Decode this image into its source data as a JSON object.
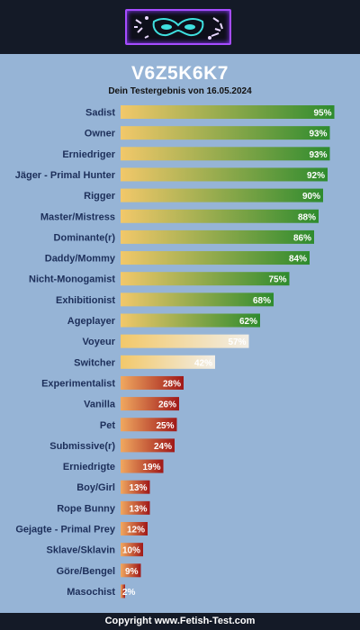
{
  "header": {
    "logo_icon": "masquerade-mask-logo"
  },
  "footer": {
    "copyright": "Copyright www.Fetish-Test.com"
  },
  "colors": {
    "page_background": "#96b4d6",
    "header_background": "#141a27",
    "high_start": "#f2c86a",
    "high_end": "#2e8b2e",
    "mid_start": "#f2c86a",
    "mid_end": "#f2eee6",
    "low_start": "#f0a860",
    "low_end": "#a01818",
    "label_color": "#1d2f5a"
  },
  "chart_data": {
    "type": "bar",
    "orientation": "horizontal",
    "title": "V6Z5K6K7",
    "subtitle": "Dein Testergebnis von 16.05.2024",
    "xlim": [
      0,
      100
    ],
    "unit": "%",
    "grid": false,
    "categories": [
      "Sadist",
      "Owner",
      "Erniedriger",
      "Jäger - Primal Hunter",
      "Rigger",
      "Master/Mistress",
      "Dominante(r)",
      "Daddy/Mommy",
      "Nicht-Monogamist",
      "Exhibitionist",
      "Ageplayer",
      "Voyeur",
      "Switcher",
      "Experimentalist",
      "Vanilla",
      "Pet",
      "Submissive(r)",
      "Erniedrigte",
      "Boy/Girl",
      "Rope Bunny",
      "Gejagte - Primal Prey",
      "Sklave/Sklavin",
      "Göre/Bengel",
      "Masochist"
    ],
    "values": [
      95,
      93,
      93,
      92,
      90,
      88,
      86,
      84,
      75,
      68,
      62,
      57,
      42,
      28,
      26,
      25,
      24,
      19,
      13,
      13,
      12,
      10,
      9,
      2
    ],
    "value_labels": [
      "95%",
      "93%",
      "93%",
      "92%",
      "90%",
      "88%",
      "86%",
      "84%",
      "75%",
      "68%",
      "62%",
      "57%",
      "42%",
      "28%",
      "26%",
      "25%",
      "24%",
      "19%",
      "13%",
      "13%",
      "12%",
      "10%",
      "9%",
      "2%"
    ]
  }
}
